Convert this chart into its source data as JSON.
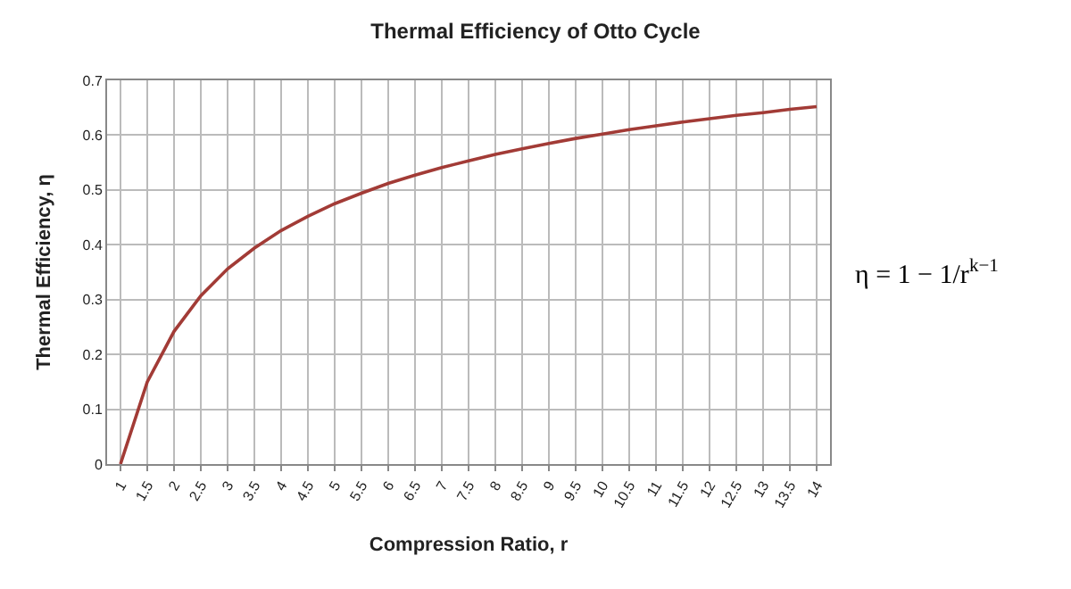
{
  "chart_data": {
    "type": "line",
    "title": "Thermal Efficiency of Otto Cycle",
    "xlabel": "Compression Ratio, r",
    "ylabel": "Thermal Efficiency, η",
    "categories": [
      "1",
      "1.5",
      "2",
      "2.5",
      "3",
      "3.5",
      "4",
      "4.5",
      "5",
      "5.5",
      "6",
      "6.5",
      "7",
      "7.5",
      "8",
      "8.5",
      "9",
      "9.5",
      "10",
      "10.5",
      "11",
      "11.5",
      "12",
      "12.5",
      "13",
      "13.5",
      "14"
    ],
    "series": [
      {
        "color": "#a23b36",
        "values": [
          0,
          0.15,
          0.242,
          0.307,
          0.356,
          0.394,
          0.426,
          0.452,
          0.475,
          0.494,
          0.512,
          0.527,
          0.541,
          0.553,
          0.565,
          0.575,
          0.585,
          0.594,
          0.602,
          0.61,
          0.617,
          0.624,
          0.63,
          0.636,
          0.641,
          0.647,
          0.652
        ]
      }
    ],
    "ylim": [
      0,
      0.7
    ],
    "yticks": [
      0,
      0.1,
      0.2,
      0.3,
      0.4,
      0.5,
      0.6,
      0.7
    ],
    "grid": true,
    "marker": "none",
    "line_style": "solid",
    "annotations": [
      "η = 1 − 1/r$^{k−1}$"
    ]
  }
}
